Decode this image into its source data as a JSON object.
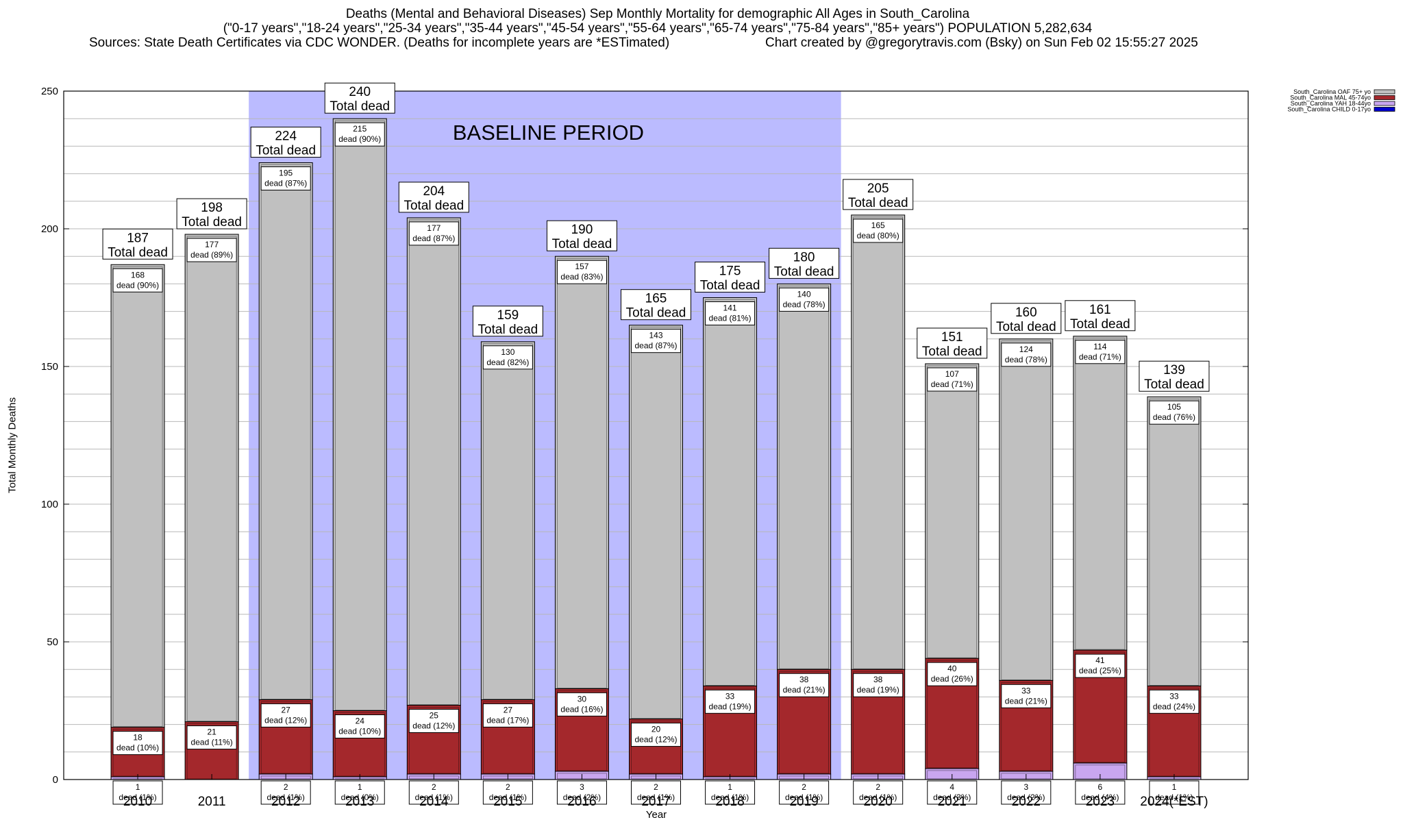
{
  "title_lines": [
    "Deaths (Mental and Behavioral Diseases) Sep Monthly Mortality for demographic All Ages in South_Carolina",
    "(\"0-17 years\",\"18-24 years\",\"25-34 years\",\"35-44 years\",\"45-54 years\",\"55-64 years\",\"65-74 years\",\"75-84 years\",\"85+ years\") POPULATION 5,282,634"
  ],
  "source_text": "Sources: State Death Certificates via CDC WONDER. (Deaths for incomplete years are *ESTimated)",
  "credit_text": "Chart created by @gregorytravis.com (Bsky) on Sun Feb 02 15:55:27 2025",
  "chart_data": {
    "type": "bar",
    "stacked": true,
    "xlabel": "Year",
    "ylabel": "Total Monthly Deaths",
    "ylim": [
      0,
      250
    ],
    "yticks": [
      0,
      50,
      100,
      150,
      200,
      250
    ],
    "grid": true,
    "legend_position": "top-right",
    "baseline_label": "BASELINE PERIOD",
    "baseline_categories": [
      "2012",
      "2019"
    ],
    "total_suffix": "Total dead",
    "categories": [
      "2010",
      "2011",
      "2012",
      "2013",
      "2014",
      "2015",
      "2016",
      "2017",
      "2018",
      "2019",
      "2020",
      "2021",
      "2022",
      "2023",
      "2024(*EST)"
    ],
    "totals": [
      187,
      198,
      224,
      240,
      204,
      159,
      190,
      165,
      175,
      180,
      205,
      151,
      160,
      161,
      139
    ],
    "series": [
      {
        "name": "South_Carolina CHILD 0-17yo",
        "color": "#0000cc",
        "values": [
          0,
          0,
          0,
          0,
          0,
          0,
          0,
          0,
          0,
          0,
          0,
          0,
          0,
          0,
          0
        ],
        "labels": [
          "",
          "",
          "",
          "",
          "",
          "",
          "",
          "",
          "",
          "",
          "",
          "",
          "",
          "",
          ""
        ]
      },
      {
        "name": "South_Carolina YAH 18-44yo",
        "color": "#c9a6f0",
        "values": [
          1,
          0,
          2,
          1,
          2,
          2,
          3,
          2,
          1,
          2,
          2,
          4,
          3,
          6,
          1
        ],
        "labels": [
          "1\ndead (1%)",
          "",
          "2\ndead (1%)",
          "1\ndead (0%)",
          "2\ndead (1%)",
          "2\ndead (1%)",
          "3\ndead (2%)",
          "2\ndead (1%)",
          "1\ndead (1%)",
          "2\ndead (1%)",
          "2\ndead (1%)",
          "4\ndead (3%)",
          "3\ndead (2%)",
          "6\ndead (4%)",
          "1\ndead (1%)"
        ]
      },
      {
        "name": "South_Carolina MAL 45-74yo",
        "color": "#a4282c",
        "values": [
          18,
          21,
          27,
          24,
          25,
          27,
          30,
          20,
          33,
          38,
          38,
          40,
          33,
          41,
          33
        ],
        "labels": [
          "18\ndead (10%)",
          "21\ndead (11%)",
          "27\ndead (12%)",
          "24\ndead (10%)",
          "25\ndead (12%)",
          "27\ndead (17%)",
          "30\ndead (16%)",
          "20\ndead (12%)",
          "33\ndead (19%)",
          "38\ndead (21%)",
          "38\ndead (19%)",
          "40\ndead (26%)",
          "33\ndead (21%)",
          "41\ndead (25%)",
          "33\ndead (24%)"
        ]
      },
      {
        "name": "South_Carolina OAF 75+ yo",
        "color": "#c0c0c0",
        "values": [
          168,
          177,
          195,
          215,
          177,
          130,
          157,
          143,
          141,
          140,
          165,
          107,
          124,
          114,
          105
        ],
        "labels": [
          "168\ndead (90%)",
          "177\ndead (89%)",
          "195\ndead (87%)",
          "215\ndead (90%)",
          "177\ndead (87%)",
          "130\ndead (82%)",
          "157\ndead (83%)",
          "143\ndead (87%)",
          "141\ndead (81%)",
          "140\ndead (78%)",
          "165\ndead (80%)",
          "107\ndead (71%)",
          "124\ndead (78%)",
          "114\ndead (71%)",
          "105\ndead (76%)"
        ]
      }
    ],
    "legend": [
      {
        "name": "South_Carolina OAF 75+ yo",
        "color": "#c0c0c0"
      },
      {
        "name": "South_Carolina MAL 45-74yo",
        "color": "#a4282c"
      },
      {
        "name": "South_Carolina YAH 18-44yo",
        "color": "#c9a6f0"
      },
      {
        "name": "South_Carolina CHILD 0-17yo",
        "color": "#0000cc"
      }
    ]
  }
}
